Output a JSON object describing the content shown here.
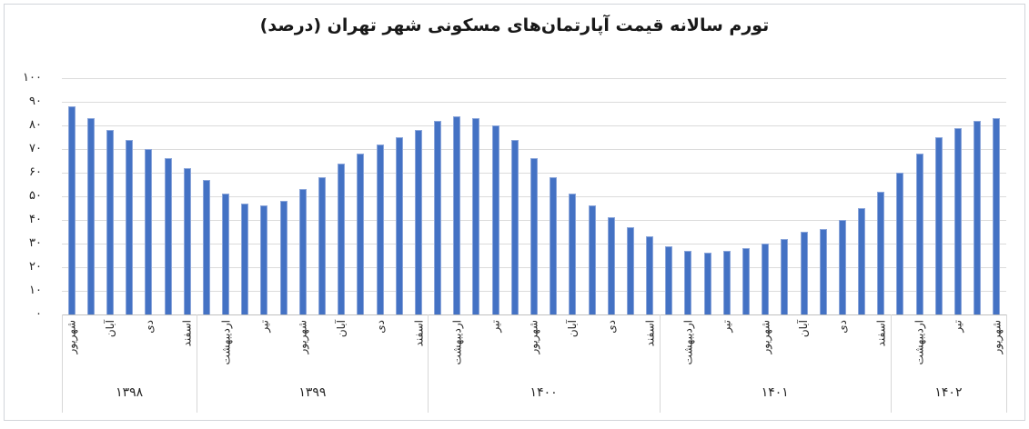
{
  "chart_data": {
    "type": "bar",
    "title": "تورم سالانه قیمت آپارتمان‌های مسکونی شهر تهران (درصد)",
    "unit_label": "درصد",
    "ylim": [
      0,
      100
    ],
    "ytick_step": 10,
    "yticklabels": [
      "۰",
      "۱۰",
      "۲۰",
      "۳۰",
      "۴۰",
      "۵۰",
      "۶۰",
      "۷۰",
      "۸۰",
      "۹۰",
      "۱۰۰"
    ],
    "grid": "horizontal",
    "legend": "none",
    "bar_color": "#4472C4",
    "bar_edge_color": "#8AA5DA",
    "groups": [
      {
        "year": "۱۳۹۸",
        "values": [
          88,
          83,
          78,
          74,
          70,
          66,
          62
        ],
        "ticks": [
          {
            "label": "شهریور",
            "bar": 0
          },
          {
            "label": "آبان",
            "bar": 2
          },
          {
            "label": "دی",
            "bar": 4
          },
          {
            "label": "اسفند",
            "bar": 6
          }
        ]
      },
      {
        "year": "۱۳۹۹",
        "values": [
          57,
          51,
          47,
          46,
          48,
          53,
          58,
          64,
          68,
          72,
          75,
          78
        ],
        "ticks": [
          {
            "label": "اردیبهشت",
            "bar": 1
          },
          {
            "label": "تیر",
            "bar": 3
          },
          {
            "label": "شهریور",
            "bar": 5
          },
          {
            "label": "آبان",
            "bar": 7
          },
          {
            "label": "دی",
            "bar": 9
          },
          {
            "label": "اسفند",
            "bar": 11
          }
        ]
      },
      {
        "year": "۱۴۰۰",
        "values": [
          82,
          84,
          83,
          80,
          74,
          66,
          58,
          51,
          46,
          41,
          37,
          33
        ],
        "ticks": [
          {
            "label": "اردیبهشت",
            "bar": 1
          },
          {
            "label": "تیر",
            "bar": 3
          },
          {
            "label": "شهریور",
            "bar": 5
          },
          {
            "label": "آبان",
            "bar": 7
          },
          {
            "label": "دی",
            "bar": 9
          },
          {
            "label": "اسفند",
            "bar": 11
          }
        ]
      },
      {
        "year": "۱۴۰۱",
        "values": [
          29,
          27,
          26,
          27,
          28,
          30,
          32,
          35,
          36,
          40,
          45,
          52
        ],
        "ticks": [
          {
            "label": "اردیبهشت",
            "bar": 1
          },
          {
            "label": "تیر",
            "bar": 3
          },
          {
            "label": "شهریور",
            "bar": 5
          },
          {
            "label": "آبان",
            "bar": 7
          },
          {
            "label": "دی",
            "bar": 9
          },
          {
            "label": "اسفند",
            "bar": 11
          }
        ]
      },
      {
        "year": "۱۴۰۲",
        "values": [
          60,
          68,
          75,
          79,
          82,
          83
        ],
        "ticks": [
          {
            "label": "اردیبهشت",
            "bar": 1
          },
          {
            "label": "تیر",
            "bar": 3
          },
          {
            "label": "شهریور",
            "bar": 5
          }
        ]
      }
    ]
  },
  "colors": {
    "background": "#FFFFFF",
    "frame_border": "#D2D5DA",
    "gridline": "#DBDBDB",
    "axis_line": "#BFBFBF",
    "text": "#262626",
    "title_text": "#181818"
  }
}
